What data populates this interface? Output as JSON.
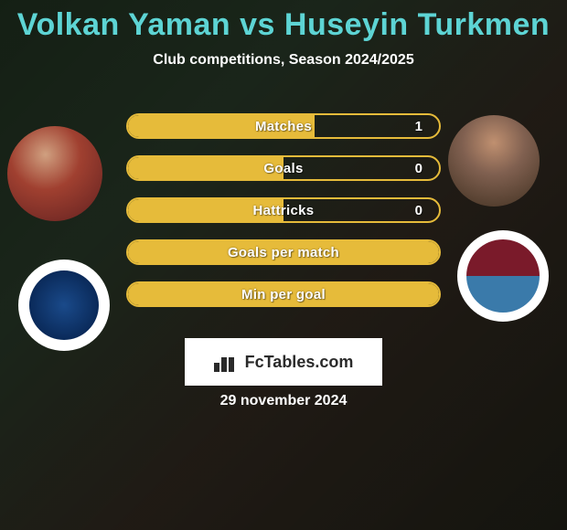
{
  "title": "Volkan Yaman vs Huseyin Turkmen",
  "subtitle": "Club competitions, Season 2024/2025",
  "date": "29 november 2024",
  "logo_text": "FcTables.com",
  "colors": {
    "title": "#5dd4d4",
    "text": "#ffffff",
    "stat_border": "#e6bb3a",
    "stat_fill": "#e6bb3a",
    "logo_bg": "#ffffff",
    "logo_text": "#2a2a2a"
  },
  "stats": [
    {
      "label": "Matches",
      "value": "1",
      "fill_pct": 60
    },
    {
      "label": "Goals",
      "value": "0",
      "fill_pct": 50
    },
    {
      "label": "Hattricks",
      "value": "0",
      "fill_pct": 50
    },
    {
      "label": "Goals per match",
      "value": "",
      "fill_pct": 100
    },
    {
      "label": "Min per goal",
      "value": "",
      "fill_pct": 100
    }
  ]
}
